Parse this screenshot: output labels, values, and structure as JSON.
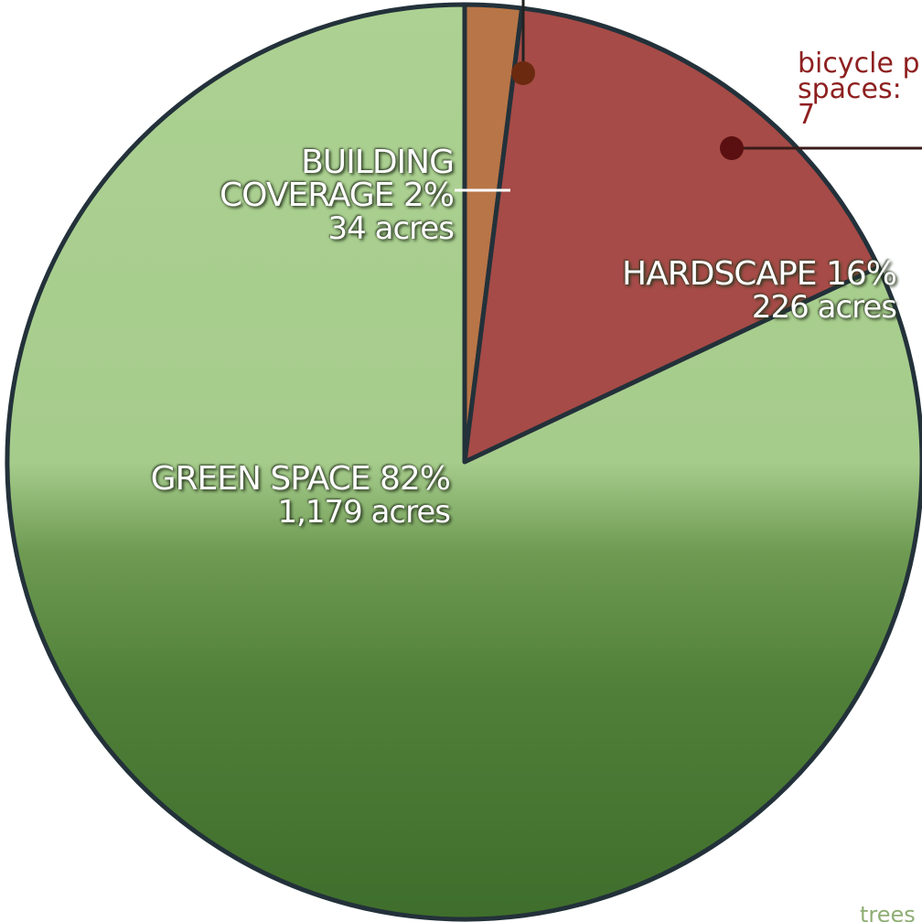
{
  "chart_data": {
    "type": "pie",
    "categories": [
      "BUILDING COVERAGE",
      "HARDSCAPE",
      "GREEN SPACE"
    ],
    "values": [
      2,
      16,
      82
    ],
    "value_labels": [
      "2%",
      "16%",
      "82%"
    ],
    "acres": [
      "34 acres",
      "226 acres",
      "1,179 acres"
    ],
    "colors": [
      "#b87547",
      "#a64b47",
      "#a9cf8e"
    ],
    "annotations": [
      "bicycle p",
      "spaces: 7",
      "trees"
    ]
  }
}
